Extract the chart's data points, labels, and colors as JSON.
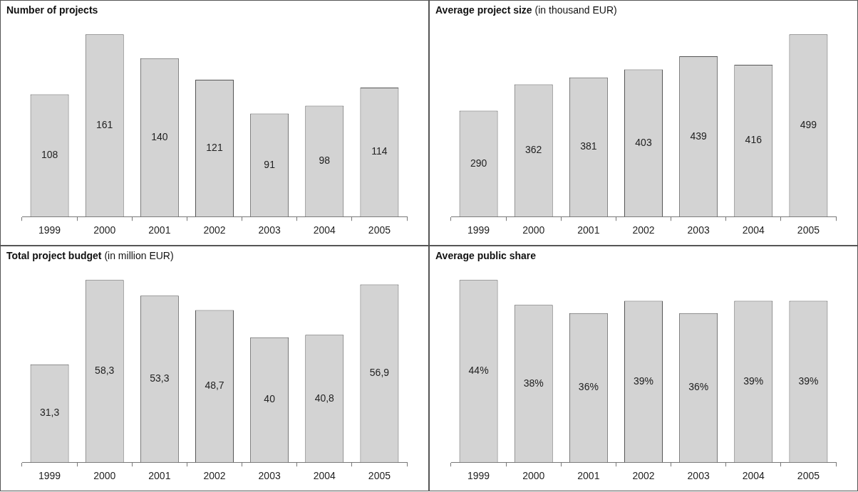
{
  "chart_data": [
    {
      "type": "bar",
      "title": "Number of projects",
      "categories": [
        "1999",
        "2000",
        "2001",
        "2002",
        "2003",
        "2004",
        "2005"
      ],
      "values": [
        108,
        161,
        140,
        121,
        91,
        98,
        114
      ],
      "color": "#d3d3d3",
      "data_labels": true,
      "grid": false,
      "legend": false
    },
    {
      "type": "bar",
      "title": "Average project size",
      "subtitle": "(in thousand EUR)",
      "categories": [
        "1999",
        "2000",
        "2001",
        "2002",
        "2003",
        "2004",
        "2005"
      ],
      "values": [
        290,
        362,
        381,
        403,
        439,
        416,
        499
      ],
      "color": "#d3d3d3",
      "data_labels": true,
      "grid": false,
      "legend": false
    },
    {
      "type": "bar",
      "title": "Total project budget",
      "subtitle": "(in million EUR)",
      "categories": [
        "1999",
        "2000",
        "2001",
        "2002",
        "2003",
        "2004",
        "2005"
      ],
      "values": [
        31.3,
        58.3,
        53.3,
        48.7,
        40,
        40.8,
        56.9
      ],
      "value_labels": [
        "31,3",
        "58,3",
        "53,3",
        "48,7",
        "40",
        "40,8",
        "56,9"
      ],
      "color": "#d3d3d3",
      "grid": false,
      "legend": false
    },
    {
      "type": "bar",
      "title": "Average public share",
      "categories": [
        "1999",
        "2000",
        "2001",
        "2002",
        "2003",
        "2004",
        "2005"
      ],
      "values": [
        44,
        38,
        36,
        39,
        36,
        39,
        39
      ],
      "value_labels": [
        "44%",
        "38%",
        "36%",
        "39%",
        "36%",
        "39%",
        "39%"
      ],
      "color": "#d3d3d3",
      "grid": false,
      "legend": false
    }
  ]
}
